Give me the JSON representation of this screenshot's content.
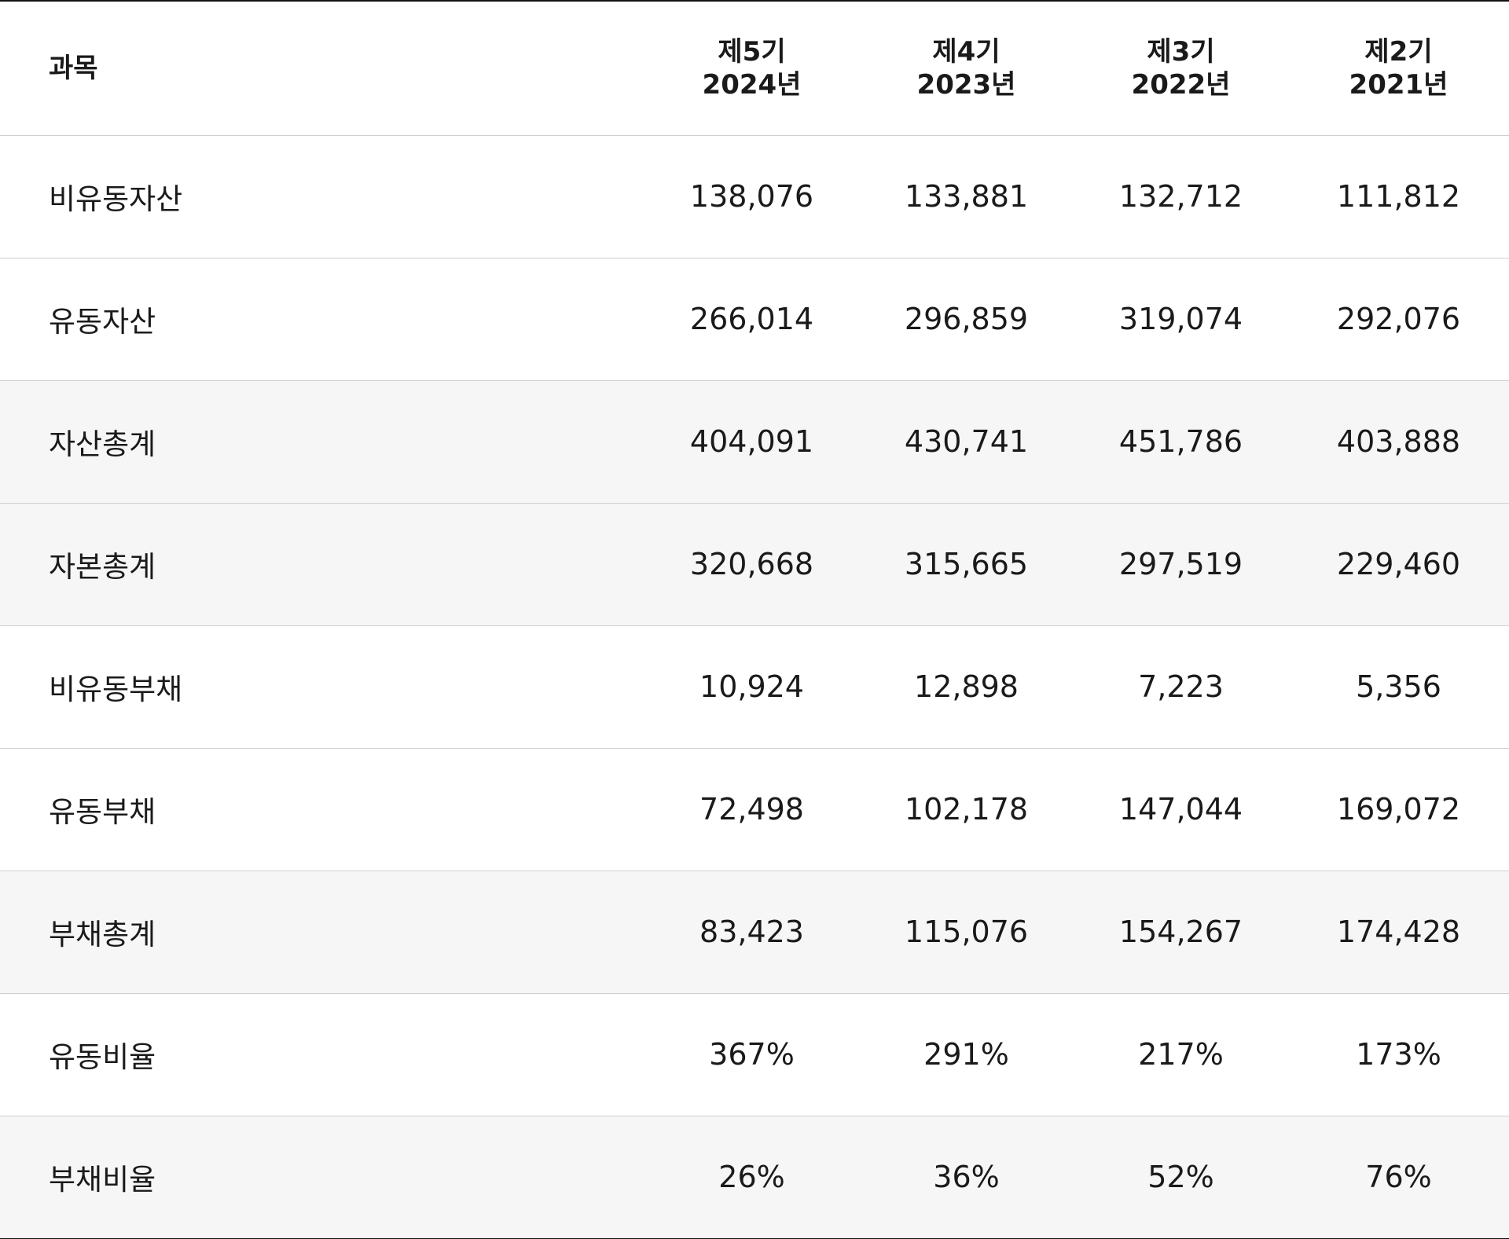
{
  "table": {
    "label_header": "과목",
    "columns": [
      {
        "period": "제5기",
        "year": "2024년"
      },
      {
        "period": "제4기",
        "year": "2023년"
      },
      {
        "period": "제3기",
        "year": "2022년"
      },
      {
        "period": "제2기",
        "year": "2021년"
      }
    ],
    "rows": [
      {
        "label": "비유동자산",
        "values": [
          "138,076",
          "133,881",
          "132,712",
          "111,812"
        ],
        "shaded": false
      },
      {
        "label": "유동자산",
        "values": [
          "266,014",
          "296,859",
          "319,074",
          "292,076"
        ],
        "shaded": false
      },
      {
        "label": "자산총계",
        "values": [
          "404,091",
          "430,741",
          "451,786",
          "403,888"
        ],
        "shaded": true
      },
      {
        "label": "자본총계",
        "values": [
          "320,668",
          "315,665",
          "297,519",
          "229,460"
        ],
        "shaded": true
      },
      {
        "label": "비유동부채",
        "values": [
          "10,924",
          "12,898",
          "7,223",
          "5,356"
        ],
        "shaded": false
      },
      {
        "label": "유동부채",
        "values": [
          "72,498",
          "102,178",
          "147,044",
          "169,072"
        ],
        "shaded": false
      },
      {
        "label": "부채총계",
        "values": [
          "83,423",
          "115,076",
          "154,267",
          "174,428"
        ],
        "shaded": true
      },
      {
        "label": "유동비율",
        "values": [
          "367%",
          "291%",
          "217%",
          "173%"
        ],
        "shaded": false
      },
      {
        "label": "부채비율",
        "values": [
          "26%",
          "36%",
          "52%",
          "76%"
        ],
        "shaded": true
      }
    ],
    "colors": {
      "shaded_row": "#f6f6f6",
      "border": "#cfcfcf",
      "rule": "#111111"
    }
  }
}
